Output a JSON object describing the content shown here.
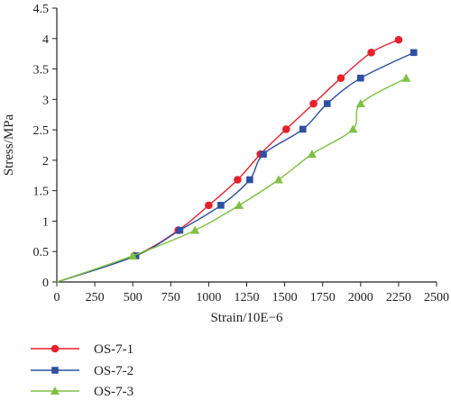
{
  "chart_data": {
    "type": "line",
    "title": "",
    "xlabel": "Strain/10E−6",
    "ylabel": "Stress/MPa",
    "xlim": [
      0,
      2500
    ],
    "ylim": [
      0,
      4.5
    ],
    "x_ticks": [
      "0",
      "250",
      "500",
      "750",
      "1000",
      "1250",
      "1500",
      "1750",
      "2000",
      "2250",
      "2500"
    ],
    "y_ticks": [
      "0",
      "0.5",
      "1",
      "1.5",
      "2",
      "2.5",
      "3",
      "3.5",
      "4",
      "4.5"
    ],
    "grid": false,
    "legend_position": "bottom-left, below plot",
    "series": [
      {
        "name": "OS-7-1",
        "color": "#e8202a",
        "marker": "circle",
        "x": [
          0,
          510,
          800,
          1000,
          1190,
          1340,
          1510,
          1690,
          1870,
          2070,
          2250
        ],
        "y": [
          0,
          0.43,
          0.85,
          1.26,
          1.68,
          2.1,
          2.51,
          2.93,
          3.35,
          3.77,
          3.98
        ]
      },
      {
        "name": "OS-7-2",
        "color": "#2e4fa2",
        "marker": "square",
        "x": [
          0,
          520,
          810,
          1080,
          1270,
          1360,
          1620,
          1780,
          2000,
          2350
        ],
        "y": [
          0,
          0.43,
          0.85,
          1.26,
          1.68,
          2.1,
          2.51,
          2.93,
          3.35,
          3.77
        ]
      },
      {
        "name": "OS-7-3",
        "color": "#7dc142",
        "marker": "triangle",
        "x": [
          0,
          500,
          910,
          1200,
          1460,
          1680,
          1950,
          2000,
          2300
        ],
        "y": [
          0,
          0.43,
          0.85,
          1.26,
          1.68,
          2.1,
          2.51,
          2.93,
          3.35
        ]
      }
    ]
  }
}
